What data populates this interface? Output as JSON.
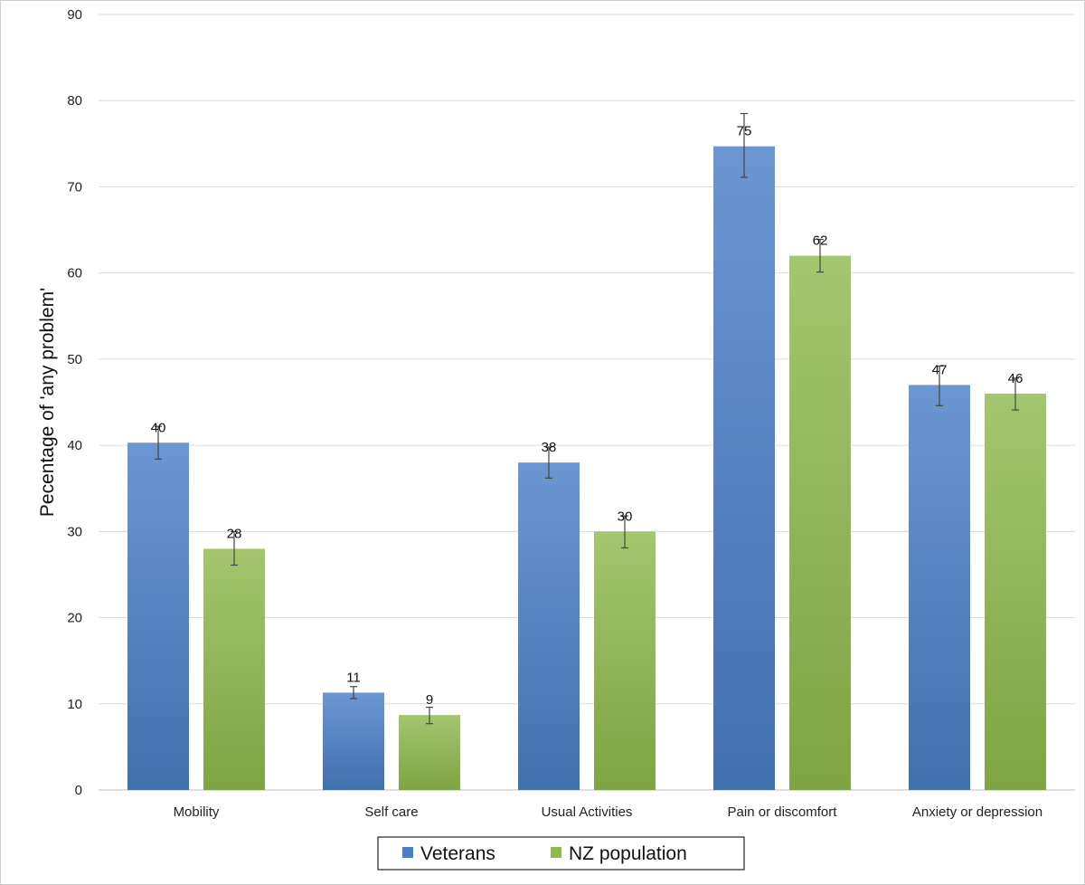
{
  "chart_data": {
    "type": "bar",
    "title": "",
    "xlabel": "",
    "ylabel": "Pecentage of 'any problem'",
    "ylim": [
      0,
      90
    ],
    "yticks": [
      0,
      10,
      20,
      30,
      40,
      50,
      60,
      70,
      80,
      90
    ],
    "grid": true,
    "legend_position": "bottom-center",
    "categories": [
      "Mobility",
      "Self care",
      "Usual Activities",
      "Pain or discomfort",
      "Anxiety or depression"
    ],
    "series": [
      {
        "name": "Veterans",
        "color": "#4a7fc8",
        "values": [
          40.3,
          11.3,
          38,
          74.7,
          47
        ],
        "labels": [
          "40",
          "11",
          "38",
          "75",
          "47"
        ],
        "error_low": [
          38.4,
          10.6,
          36.2,
          71.1,
          44.6
        ],
        "error_high": [
          42.2,
          12.0,
          39.8,
          78.5,
          49.2
        ]
      },
      {
        "name": "NZ population",
        "color": "#8fba4e",
        "values": [
          28,
          8.7,
          30,
          62,
          46
        ],
        "labels": [
          "28",
          "9",
          "30",
          "62",
          "46"
        ],
        "error_low": [
          26.1,
          7.7,
          28.1,
          60.1,
          44.1
        ],
        "error_high": [
          30.0,
          9.6,
          31.8,
          63.9,
          47.8
        ]
      }
    ]
  }
}
